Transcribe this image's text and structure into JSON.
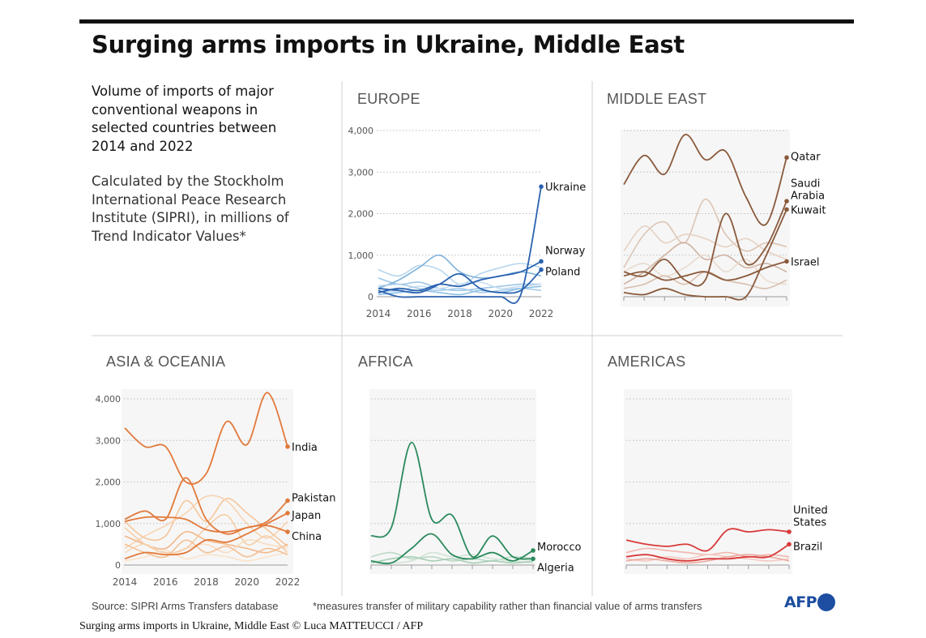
{
  "header": {
    "title": "Surging arms imports in Ukraine, Middle East",
    "subtitle_lines": [
      "Volume of imports of major",
      "conventional weapons in",
      "selected countries between",
      "2014 and 2022"
    ],
    "method_lines": [
      "Calculated by the Stockholm",
      "International Peace Research",
      "Institute (SIPRI), in millions of",
      "Trend Indicator Values*"
    ]
  },
  "footer": {
    "source": "Source: SIPRI Arms Transfers database",
    "footnote": "*measures transfer of military capability rather than financial value of arms transfers",
    "logo": "AFP",
    "caption": "Surging arms imports in Ukraine, Middle East © Luca MATTEUCCI / AFP"
  },
  "chart_data": [
    {
      "type": "line",
      "title": "EUROPE",
      "color": "#2a62b0",
      "x": [
        2014,
        2015,
        2016,
        2017,
        2018,
        2019,
        2020,
        2021,
        2022
      ],
      "ylim": [
        0,
        4000
      ],
      "yticks": [
        "4,000",
        "3,000",
        "2,000",
        "1,000",
        "0"
      ],
      "xticks": [
        "2014",
        "2016",
        "2018",
        "2020",
        "2022"
      ],
      "series": [
        {
          "name": "Ukraine",
          "values": [
            150,
            0,
            0,
            0,
            0,
            0,
            0,
            50,
            2650
          ]
        },
        {
          "name": "Norway",
          "values": [
            100,
            200,
            150,
            300,
            250,
            400,
            500,
            600,
            850
          ]
        },
        {
          "name": "Poland",
          "values": [
            200,
            150,
            100,
            300,
            550,
            200,
            100,
            150,
            650
          ]
        }
      ],
      "background_series": [
        [
          450,
          300,
          350,
          200,
          150,
          200,
          250,
          300,
          300
        ],
        [
          650,
          500,
          750,
          650,
          300,
          550,
          700,
          800,
          700
        ],
        [
          200,
          400,
          700,
          1000,
          600,
          450,
          500,
          600,
          500
        ],
        [
          100,
          150,
          250,
          200,
          300,
          350,
          200,
          250,
          300
        ],
        [
          250,
          300,
          200,
          150,
          200,
          100,
          150,
          200,
          150
        ],
        [
          50,
          100,
          150,
          100,
          50,
          150,
          100,
          200,
          250
        ]
      ]
    },
    {
      "type": "line",
      "title": "MIDDLE EAST",
      "color": "#8a5a3c",
      "x": [
        2014,
        2015,
        2016,
        2017,
        2018,
        2019,
        2020,
        2021,
        2022
      ],
      "ylim": [
        0,
        4000
      ],
      "series": [
        {
          "name": "Qatar",
          "values": [
            2700,
            3400,
            2950,
            3900,
            3300,
            3500,
            2400,
            1750,
            3350
          ]
        },
        {
          "name": "Saudi Arabia",
          "values": [
            600,
            500,
            900,
            400,
            400,
            2000,
            800,
            1200,
            2300
          ]
        },
        {
          "name": "Kuwait",
          "values": [
            100,
            50,
            200,
            50,
            0,
            0,
            0,
            1000,
            2100
          ]
        },
        {
          "name": "Israel",
          "values": [
            500,
            600,
            400,
            500,
            600,
            400,
            500,
            700,
            850
          ]
        }
      ],
      "background_series": [
        [
          700,
          1500,
          1800,
          1300,
          2350,
          1500,
          1100,
          1300,
          1200
        ],
        [
          1100,
          1700,
          1300,
          1500,
          1400,
          1200,
          1400,
          1100,
          900
        ],
        [
          300,
          600,
          1000,
          1300,
          900,
          1000,
          700,
          800,
          600
        ],
        [
          600,
          800,
          500,
          700,
          1000,
          600,
          900,
          400,
          300
        ],
        [
          200,
          300,
          500,
          300,
          600,
          400,
          300,
          200,
          400
        ]
      ]
    },
    {
      "type": "line",
      "title": "ASIA & OCEANIA",
      "color": "#e2793b",
      "x": [
        2014,
        2015,
        2016,
        2017,
        2018,
        2019,
        2020,
        2021,
        2022
      ],
      "ylim": [
        0,
        4000
      ],
      "yticks": [
        "4,000",
        "3,000",
        "2,000",
        "1,000",
        "0"
      ],
      "xticks": [
        "2014",
        "2016",
        "2018",
        "2020",
        "2022"
      ],
      "series": [
        {
          "name": "India",
          "values": [
            3300,
            2850,
            2850,
            2000,
            2200,
            3450,
            2900,
            4150,
            2850
          ]
        },
        {
          "name": "Pakistan",
          "values": [
            1050,
            1150,
            1150,
            1100,
            850,
            800,
            900,
            1050,
            1550
          ]
        },
        {
          "name": "Japan",
          "values": [
            150,
            300,
            250,
            300,
            600,
            550,
            750,
            1000,
            1250
          ]
        },
        {
          "name": "China",
          "values": [
            1100,
            1300,
            1100,
            2100,
            1100,
            750,
            900,
            950,
            800
          ]
        }
      ],
      "background_series": [
        [
          1050,
          650,
          700,
          1550,
          1050,
          1600,
          1250,
          850,
          450
        ],
        [
          400,
          700,
          950,
          1250,
          1650,
          1550,
          1000,
          650,
          1050
        ],
        [
          700,
          500,
          400,
          800,
          600,
          500,
          400,
          300,
          500
        ],
        [
          300,
          500,
          250,
          400,
          500,
          300,
          600,
          500,
          400
        ],
        [
          900,
          500,
          300,
          400,
          900,
          1200,
          500,
          700,
          300
        ],
        [
          100,
          200,
          350,
          150,
          250,
          200,
          100,
          200,
          300
        ],
        [
          500,
          300,
          200,
          600,
          300,
          450,
          200,
          400,
          250
        ]
      ]
    },
    {
      "type": "line",
      "title": "AFRICA",
      "color": "#2a8a5c",
      "x": [
        2014,
        2015,
        2016,
        2017,
        2018,
        2019,
        2020,
        2021,
        2022
      ],
      "ylim": [
        0,
        4000
      ],
      "series": [
        {
          "name": "Morocco",
          "values": [
            100,
            50,
            400,
            750,
            250,
            150,
            300,
            100,
            350
          ]
        },
        {
          "name": "Algeria",
          "values": [
            700,
            900,
            2950,
            1100,
            1200,
            200,
            700,
            200,
            150
          ]
        }
      ],
      "background_series": [
        [
          200,
          300,
          150,
          200,
          100,
          150,
          100,
          200,
          150
        ],
        [
          100,
          50,
          100,
          300,
          200,
          250,
          150,
          100,
          50
        ],
        [
          50,
          150,
          200,
          100,
          150,
          50,
          100,
          50,
          100
        ]
      ]
    },
    {
      "type": "line",
      "title": "AMERICAS",
      "color": "#d93a3a",
      "x": [
        2014,
        2015,
        2016,
        2017,
        2018,
        2019,
        2020,
        2021,
        2022
      ],
      "ylim": [
        0,
        4000
      ],
      "series": [
        {
          "name": "United States",
          "values": [
            600,
            500,
            450,
            500,
            350,
            850,
            800,
            850,
            800
          ]
        },
        {
          "name": "Brazil",
          "values": [
            200,
            250,
            150,
            100,
            150,
            150,
            200,
            200,
            500
          ]
        }
      ],
      "background_series": [
        [
          300,
          400,
          350,
          300,
          250,
          300,
          200,
          250,
          200
        ],
        [
          150,
          100,
          200,
          150,
          250,
          200,
          150,
          100,
          150
        ],
        [
          100,
          150,
          100,
          50,
          100,
          200,
          250,
          200,
          100
        ]
      ]
    }
  ]
}
